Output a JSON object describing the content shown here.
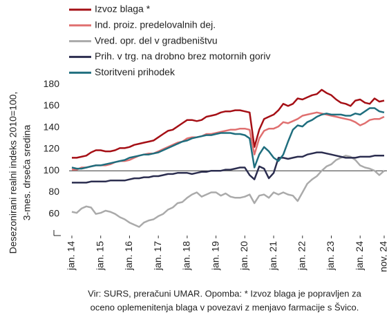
{
  "chart_data": {
    "type": "line",
    "y_axis_label": [
      "Desezonirani realni indeks 2010=100,",
      "3-mes. drseča sredina"
    ],
    "note": [
      "Vir: SURS, preračuni UMAR. Opomba: * Izvoz blaga je popravljen za",
      "oceno oplemenitenja blaga v povezavi z menjavo farmacije s Švico."
    ],
    "categories": [
      "jan. 14",
      null,
      null,
      null,
      null,
      null,
      "jan. 15",
      null,
      null,
      null,
      null,
      null,
      "jan. 16",
      null,
      null,
      null,
      null,
      null,
      "jan. 17",
      null,
      null,
      null,
      null,
      null,
      "jan. 18",
      null,
      null,
      null,
      null,
      null,
      "jan. 19",
      null,
      null,
      null,
      null,
      null,
      "jan. 20",
      null,
      null,
      null,
      null,
      null,
      "jan. 21",
      null,
      null,
      null,
      null,
      null,
      "jan. 22",
      null,
      null,
      null,
      null,
      null,
      "jan. 23",
      null,
      null,
      null,
      null,
      null,
      "jan. 24",
      null,
      null,
      null,
      null,
      "nov. 24"
    ],
    "ylim": [
      40,
      182
    ],
    "yticks": [
      60,
      80,
      100,
      120,
      140,
      160,
      180
    ],
    "reference_line": 100,
    "series": [
      {
        "name": "Izvoz blaga *",
        "color": "#a50f15",
        "values": [
          112,
          112,
          113,
          114,
          117,
          119,
          119,
          118,
          118,
          119,
          121,
          121,
          122,
          124,
          125,
          126,
          127,
          128,
          131,
          134,
          137,
          138,
          141,
          144,
          147,
          147,
          146,
          147,
          150,
          151,
          152,
          154,
          155,
          155,
          156,
          156,
          155,
          154,
          122,
          138,
          148,
          150,
          152,
          156,
          162,
          160,
          162,
          167,
          166,
          168,
          170,
          171,
          175,
          172,
          170,
          166,
          163,
          162,
          160,
          165,
          166,
          163,
          162,
          167,
          164,
          165
        ]
      },
      {
        "name": "Ind. proiz. predelovalnih dej.",
        "color": "#e07070",
        "values": [
          101,
          101,
          103,
          103,
          104,
          105,
          105,
          105,
          106,
          108,
          109,
          109,
          110,
          112,
          114,
          115,
          116,
          116,
          118,
          120,
          122,
          124,
          126,
          127,
          130,
          131,
          131,
          132,
          134,
          134,
          135,
          136,
          137,
          138,
          138,
          139,
          139,
          138,
          115,
          130,
          137,
          139,
          139,
          141,
          145,
          144,
          146,
          148,
          151,
          152,
          153,
          154,
          153,
          152,
          151,
          150,
          149,
          148,
          147,
          145,
          142,
          144,
          147,
          148,
          148,
          150
        ]
      },
      {
        "name": "Vred. opr. del v gradbeništvu",
        "color": "#aaaaaa",
        "values": [
          62,
          61,
          65,
          67,
          66,
          60,
          61,
          63,
          62,
          60,
          57,
          55,
          52,
          50,
          48,
          52,
          54,
          55,
          58,
          60,
          64,
          66,
          70,
          71,
          75,
          78,
          80,
          76,
          78,
          80,
          80,
          77,
          79,
          76,
          75,
          75,
          76,
          78,
          70,
          77,
          78,
          75,
          80,
          78,
          80,
          78,
          77,
          72,
          80,
          88,
          92,
          95,
          100,
          104,
          106,
          110,
          112,
          114,
          113,
          110,
          105,
          103,
          102,
          100,
          96,
          100
        ]
      },
      {
        "name": "Prih. v trg. na drobno brez motornih goriv",
        "color": "#2b2d4f",
        "values": [
          89,
          89,
          89,
          89,
          90,
          90,
          90,
          90,
          91,
          91,
          91,
          91,
          92,
          93,
          93,
          94,
          94,
          95,
          95,
          96,
          97,
          97,
          98,
          98,
          98,
          97,
          98,
          99,
          99,
          100,
          100,
          100,
          101,
          101,
          102,
          103,
          103,
          96,
          92,
          104,
          102,
          93,
          98,
          112,
          112,
          111,
          112,
          113,
          113,
          115,
          116,
          117,
          117,
          116,
          115,
          114,
          113,
          112,
          112,
          112,
          113,
          113,
          113,
          114,
          114,
          114
        ]
      },
      {
        "name": "Storitveni prihodek",
        "color": "#1f6e7e",
        "values": [
          103,
          102,
          102,
          103,
          104,
          105,
          105,
          106,
          107,
          108,
          109,
          110,
          112,
          113,
          114,
          115,
          115,
          116,
          117,
          119,
          121,
          123,
          125,
          127,
          128,
          130,
          131,
          132,
          133,
          133,
          134,
          135,
          135,
          135,
          134,
          134,
          133,
          130,
          103,
          115,
          122,
          118,
          112,
          109,
          115,
          127,
          138,
          142,
          141,
          145,
          147,
          150,
          152,
          153,
          152,
          152,
          152,
          151,
          151,
          153,
          152,
          155,
          158,
          158,
          155,
          154
        ]
      }
    ]
  }
}
